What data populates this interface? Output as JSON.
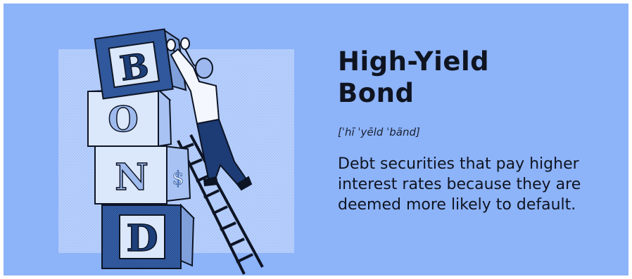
{
  "term": {
    "title": "High-Yield Bond",
    "pronunciation": "[ˈhī ˈyēld ˈbänd]",
    "definition": "Debt securities that pay higher interest rates because they are deemed more likely to default."
  },
  "illustration": {
    "blocks": [
      "B",
      "O",
      "N",
      "D"
    ],
    "block_side_symbols": [
      "$",
      "$"
    ]
  },
  "colors": {
    "background": "#8db3f9",
    "navy": "#1d3f7a",
    "light_block": "#dbe7fb",
    "text": "#0f1420"
  }
}
